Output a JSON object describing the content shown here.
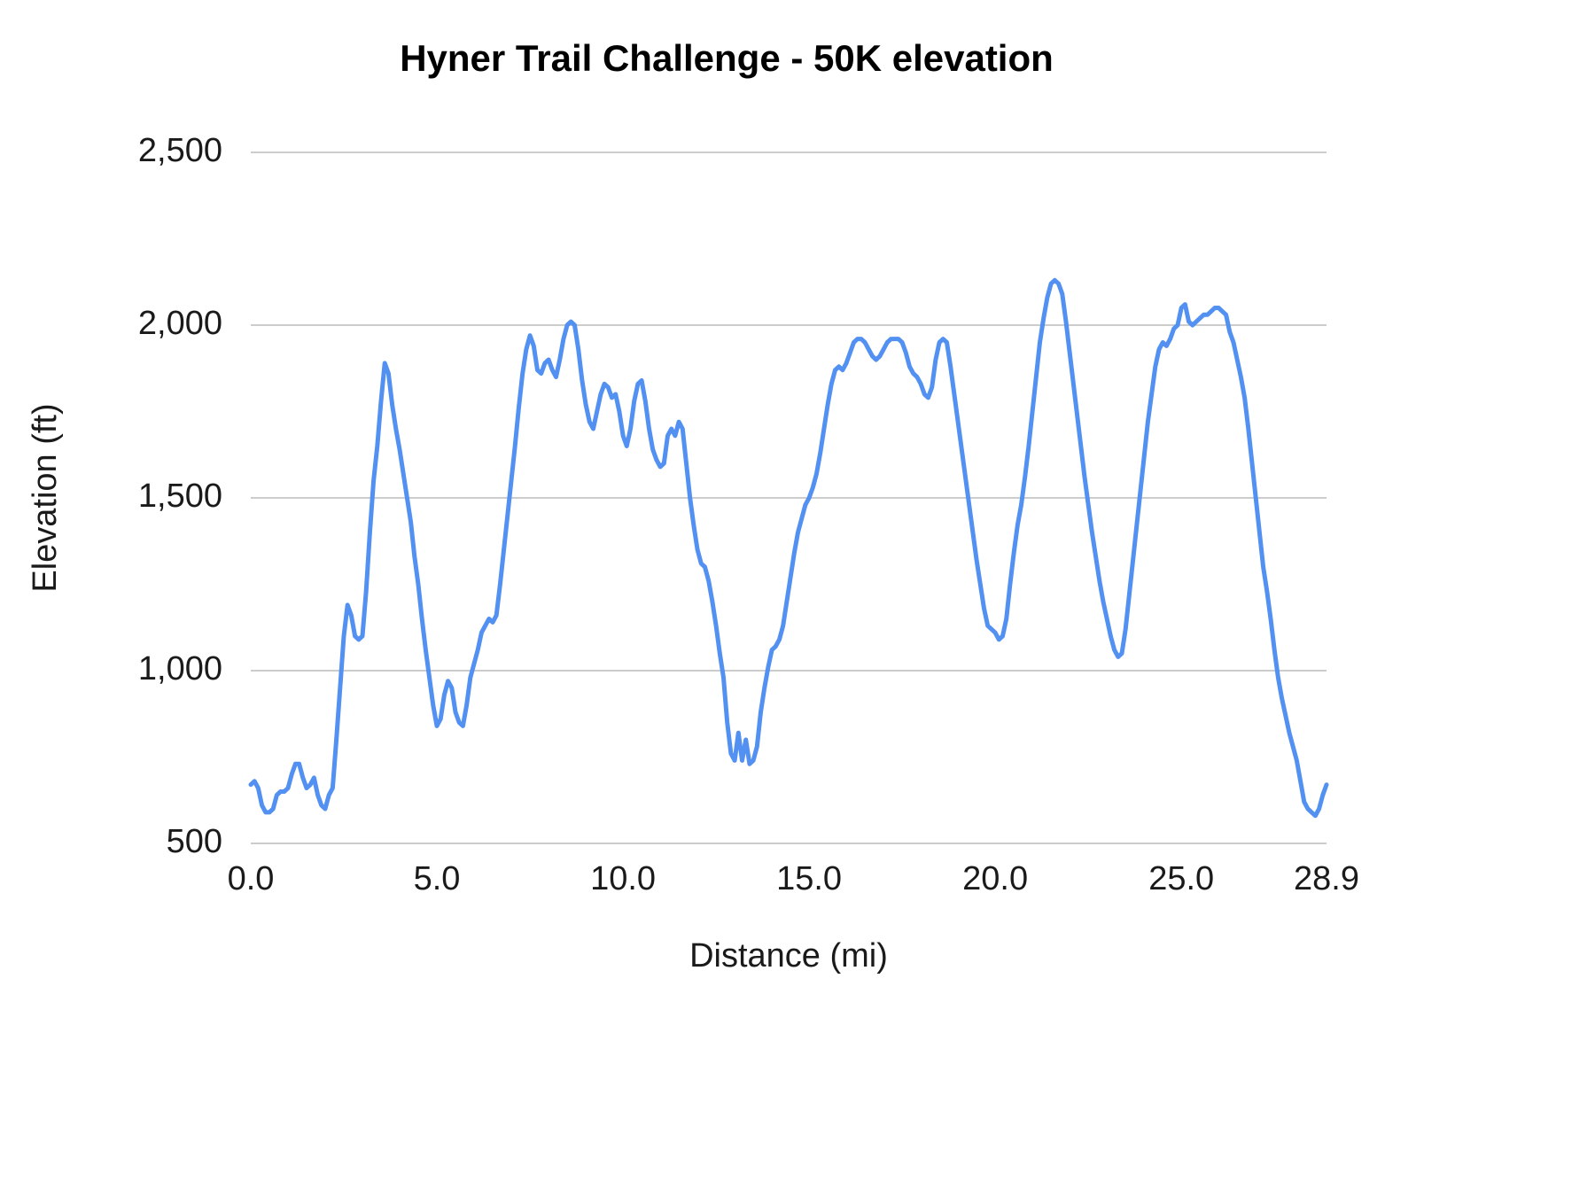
{
  "chart_data": {
    "type": "line",
    "title": "Hyner Trail Challenge - 50K elevation",
    "xlabel": "Distance (mi)",
    "ylabel": "Elevation (ft)",
    "xlim": [
      0,
      28.9
    ],
    "ylim": [
      500,
      2500
    ],
    "grid": "horizontal-only",
    "legend_position": "none",
    "line_color": "#5290f2",
    "grid_color": "#cccccc",
    "tick_label_color": "#1a1a1a",
    "xticks": [
      0,
      5,
      10,
      15,
      20,
      25,
      28.9
    ],
    "xtick_labels": [
      "0.0",
      "5.0",
      "10.0",
      "15.0",
      "20.0",
      "25.0",
      "28.9"
    ],
    "yticks": [
      500,
      1000,
      1500,
      2000,
      2500
    ],
    "ytick_labels": [
      "500",
      "1,000",
      "1,500",
      "2,000",
      "2,500"
    ],
    "x_start": 0,
    "x_step": 0.1,
    "elevations_ft": [
      670,
      680,
      660,
      610,
      590,
      590,
      600,
      640,
      650,
      650,
      660,
      700,
      730,
      730,
      690,
      660,
      670,
      690,
      640,
      610,
      600,
      640,
      660,
      800,
      950,
      1100,
      1190,
      1160,
      1100,
      1090,
      1100,
      1230,
      1400,
      1550,
      1650,
      1780,
      1890,
      1860,
      1770,
      1700,
      1640,
      1570,
      1500,
      1430,
      1330,
      1250,
      1150,
      1060,
      980,
      900,
      840,
      860,
      930,
      970,
      950,
      880,
      850,
      840,
      900,
      980,
      1020,
      1060,
      1110,
      1130,
      1150,
      1140,
      1160,
      1250,
      1350,
      1450,
      1550,
      1650,
      1760,
      1860,
      1930,
      1970,
      1940,
      1870,
      1860,
      1890,
      1900,
      1870,
      1850,
      1900,
      1960,
      2000,
      2010,
      2000,
      1930,
      1840,
      1770,
      1720,
      1700,
      1750,
      1800,
      1830,
      1820,
      1790,
      1800,
      1750,
      1680,
      1650,
      1700,
      1780,
      1830,
      1840,
      1780,
      1700,
      1640,
      1610,
      1590,
      1600,
      1680,
      1700,
      1680,
      1720,
      1700,
      1600,
      1500,
      1420,
      1350,
      1310,
      1300,
      1260,
      1200,
      1130,
      1050,
      980,
      850,
      760,
      740,
      820,
      740,
      800,
      730,
      740,
      780,
      880,
      950,
      1010,
      1060,
      1070,
      1090,
      1130,
      1200,
      1270,
      1340,
      1400,
      1440,
      1480,
      1500,
      1530,
      1570,
      1630,
      1700,
      1770,
      1830,
      1870,
      1880,
      1870,
      1890,
      1920,
      1950,
      1960,
      1960,
      1950,
      1930,
      1910,
      1900,
      1910,
      1930,
      1950,
      1960,
      1960,
      1960,
      1950,
      1920,
      1880,
      1860,
      1850,
      1830,
      1800,
      1790,
      1820,
      1900,
      1950,
      1960,
      1950,
      1880,
      1800,
      1720,
      1640,
      1560,
      1480,
      1400,
      1320,
      1250,
      1180,
      1130,
      1120,
      1110,
      1090,
      1100,
      1150,
      1250,
      1340,
      1420,
      1480,
      1560,
      1650,
      1750,
      1850,
      1950,
      2020,
      2080,
      2120,
      2130,
      2120,
      2090,
      2010,
      1920,
      1830,
      1740,
      1650,
      1560,
      1480,
      1400,
      1330,
      1260,
      1200,
      1150,
      1100,
      1060,
      1040,
      1050,
      1120,
      1220,
      1320,
      1420,
      1520,
      1620,
      1720,
      1800,
      1880,
      1930,
      1950,
      1940,
      1960,
      1990,
      2000,
      2050,
      2060,
      2010,
      2000,
      2010,
      2020,
      2030,
      2030,
      2040,
      2050,
      2050,
      2040,
      2030,
      1980,
      1950,
      1900,
      1850,
      1790,
      1700,
      1600,
      1500,
      1400,
      1300,
      1230,
      1150,
      1060,
      980,
      920,
      870,
      820,
      780,
      740,
      680,
      620,
      600,
      590,
      580,
      600,
      640,
      670
    ]
  }
}
